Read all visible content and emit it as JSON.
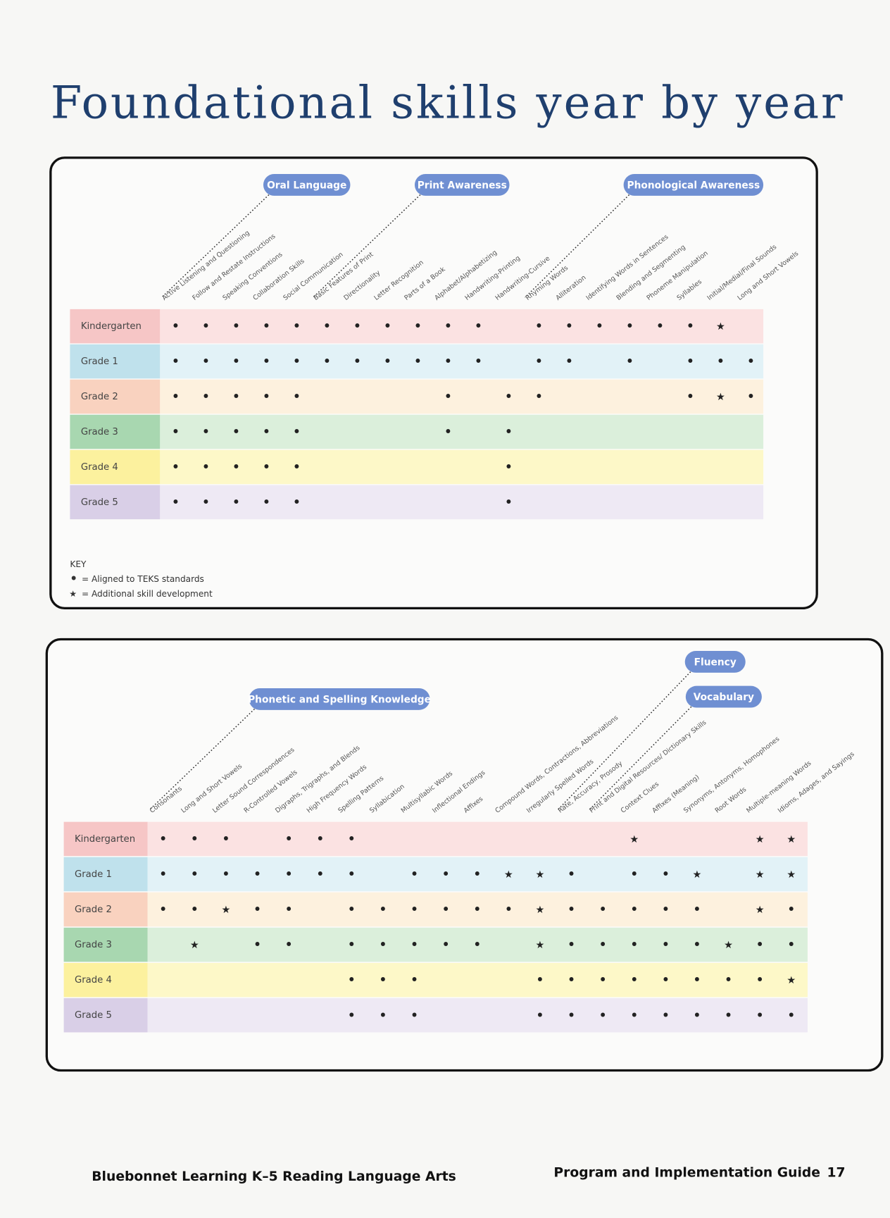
{
  "title": "Foundational skills year by year",
  "tables": [
    {
      "groups": [
        {
          "label": "Oral Language",
          "columns": [
            "Active Listening and Questioning",
            "Follow and Restate Instructions",
            "Speaking Conventions",
            "Collaboration Skills",
            "Social Communication"
          ]
        },
        {
          "label": "Print Awareness",
          "columns": [
            "Basic Features of Print",
            "Directionality",
            "Letter Recognition",
            "Parts of a Book",
            "Alphabet/Alphabetizing",
            "Handwriting-Printing",
            "Handwriting-Cursive"
          ]
        },
        {
          "label": "Phonological Awareness",
          "columns": [
            "Rhyming Words",
            "Alliteration",
            "Identifying Words in Sentences",
            "Blending and Segmenting",
            "Phoneme Manipulation",
            "Syllables",
            "Initial/Medial/Final Sounds",
            "Long and Short Vowels"
          ]
        }
      ],
      "rows": [
        {
          "label": "Kindergarten",
          "cells": [
            "•",
            "•",
            "•",
            "•",
            "•",
            "•",
            "•",
            "•",
            "•",
            "•",
            "•",
            null,
            "•",
            "•",
            "•",
            "•",
            "•",
            "•",
            "★",
            null
          ]
        },
        {
          "label": "Grade 1",
          "cells": [
            "•",
            "•",
            "•",
            "•",
            "•",
            "•",
            "•",
            "•",
            "•",
            "•",
            "•",
            null,
            "•",
            "•",
            null,
            "•",
            null,
            "•",
            "•",
            "•"
          ]
        },
        {
          "label": "Grade 2",
          "cells": [
            "•",
            "•",
            "•",
            "•",
            "•",
            null,
            null,
            null,
            null,
            "•",
            null,
            "•",
            "•",
            null,
            null,
            null,
            null,
            "•",
            "★",
            "•"
          ]
        },
        {
          "label": "Grade 3",
          "cells": [
            "•",
            "•",
            "•",
            "•",
            "•",
            null,
            null,
            null,
            null,
            "•",
            null,
            "•",
            null,
            null,
            null,
            null,
            null,
            null,
            null,
            null
          ]
        },
        {
          "label": "Grade 4",
          "cells": [
            "•",
            "•",
            "•",
            "•",
            "•",
            null,
            null,
            null,
            null,
            null,
            null,
            "•",
            null,
            null,
            null,
            null,
            null,
            null,
            null,
            null
          ]
        },
        {
          "label": "Grade 5",
          "cells": [
            "•",
            "•",
            "•",
            "•",
            "•",
            null,
            null,
            null,
            null,
            null,
            null,
            "•",
            null,
            null,
            null,
            null,
            null,
            null,
            null,
            null
          ]
        }
      ]
    },
    {
      "groups": [
        {
          "label": "Phonetic and Spelling Knowledge",
          "columns": [
            "Consonants",
            "Long and Short Vowels",
            "Letter Sound Correspondences",
            "R-Controlled Vowels",
            "Digraphs, Trigraphs, and Blends",
            "High Frequency Words",
            "Spelling Patterns",
            "Syllabication",
            "Multisyllabic Words",
            "Inflectional Endings",
            "Affixes",
            "Compound Words, Contractions, Abbreviations",
            "Irregularly Spelled Words"
          ]
        },
        {
          "label": "Fluency",
          "columns": [
            "Rate, Accuracy, Prosody"
          ]
        },
        {
          "label": "Vocabulary",
          "columns": [
            "Print and Digital Resources/ Dictionary Skills",
            "Context Clues",
            "Affixes (Meaning)",
            "Synonyms, Antonyms, Homophones",
            "Root Words",
            "Multiple-meaning Words",
            "Idioms, Adages, and Sayings"
          ]
        }
      ],
      "rows": [
        {
          "label": "Kindergarten",
          "cells": [
            "•",
            "•",
            "•",
            null,
            "•",
            "•",
            "•",
            null,
            null,
            null,
            null,
            null,
            null,
            null,
            null,
            "★",
            null,
            null,
            null,
            "★",
            "★"
          ]
        },
        {
          "label": "Grade 1",
          "cells": [
            "•",
            "•",
            "•",
            "•",
            "•",
            "•",
            "•",
            null,
            "•",
            "•",
            "•",
            "★",
            "★",
            "•",
            null,
            "•",
            "•",
            "★",
            null,
            "★",
            "★"
          ]
        },
        {
          "label": "Grade 2",
          "cells": [
            "•",
            "•",
            "★",
            "•",
            "•",
            null,
            "•",
            "•",
            "•",
            "•",
            "•",
            "•",
            "★",
            "•",
            "•",
            "•",
            "•",
            "•",
            null,
            "★",
            "•"
          ]
        },
        {
          "label": "Grade 3",
          "cells": [
            null,
            "★",
            null,
            "•",
            "•",
            null,
            "•",
            "•",
            "•",
            "•",
            "•",
            null,
            "★",
            "•",
            "•",
            "•",
            "•",
            "•",
            "★",
            "•",
            "•"
          ]
        },
        {
          "label": "Grade 4",
          "cells": [
            null,
            null,
            null,
            null,
            null,
            null,
            "•",
            "•",
            "•",
            null,
            null,
            null,
            "•",
            "•",
            "•",
            "•",
            "•",
            "•",
            "•",
            "•",
            "★"
          ]
        },
        {
          "label": "Grade 5",
          "cells": [
            null,
            null,
            null,
            null,
            null,
            null,
            "•",
            "•",
            "•",
            null,
            null,
            null,
            "•",
            "•",
            "•",
            "•",
            "•",
            "•",
            "•",
            "•",
            "•"
          ]
        }
      ]
    }
  ],
  "key": {
    "title": "KEY",
    "items": [
      {
        "symbol": "•",
        "text": "= Aligned to TEKS standards"
      },
      {
        "symbol": "★",
        "text": "= Additional skill development"
      }
    ]
  },
  "footer": {
    "left": "Bluebonnet Learning K–5 Reading Language Arts",
    "right": "Program and Implementation Guide",
    "page": "17"
  }
}
